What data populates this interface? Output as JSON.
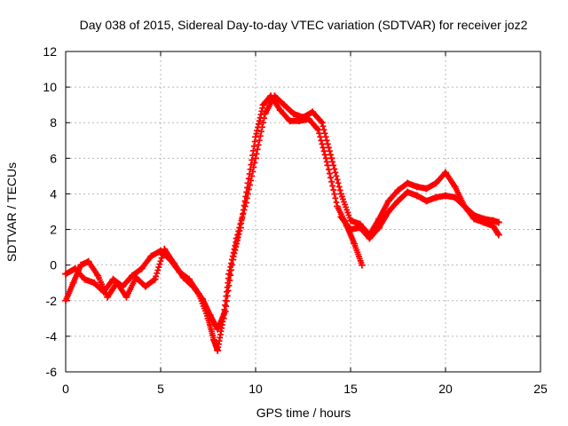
{
  "chart_data": {
    "type": "scatter",
    "title": "Day 038 of 2015, Sidereal Day-to-day VTEC variation (SDTVAR) for receiver joz2",
    "xlabel": "GPS time / hours",
    "ylabel": "SDTVAR / TECUs",
    "xlim": [
      0,
      25
    ],
    "ylim": [
      -6,
      12
    ],
    "xticks": [
      "0",
      "5",
      "10",
      "15",
      "20",
      "25"
    ],
    "yticks": [
      "-6",
      "-4",
      "-2",
      "0",
      "2",
      "4",
      "6",
      "8",
      "10",
      "12"
    ],
    "grid": true,
    "marker": "+",
    "series": [
      {
        "name": "main-trace-a",
        "x": [
          0.0,
          0.5,
          1.0,
          1.5,
          2.0,
          2.5,
          3.0,
          3.5,
          4.0,
          4.5,
          5.0,
          5.5,
          6.0,
          6.5,
          7.0,
          7.5,
          7.8,
          8.0,
          8.3,
          8.6,
          9.0,
          9.5,
          10.0,
          10.5,
          11.0,
          11.5,
          12.0,
          12.5,
          13.0,
          13.5,
          14.0,
          14.5,
          15.0,
          15.5,
          16.0,
          16.5,
          17.0,
          17.5,
          18.0,
          18.5,
          19.0,
          19.5,
          20.0,
          20.5,
          21.0,
          21.5,
          22.0,
          22.5,
          22.8
        ],
        "y": [
          -0.5,
          -0.2,
          -0.8,
          -1.0,
          -1.5,
          -0.8,
          -1.2,
          -0.6,
          -0.2,
          0.5,
          0.8,
          0.3,
          -0.4,
          -0.8,
          -1.6,
          -3.0,
          -4.2,
          -4.8,
          -3.0,
          -0.5,
          1.5,
          3.5,
          6.0,
          8.5,
          9.5,
          9.0,
          8.5,
          8.3,
          8.6,
          8.0,
          6.0,
          4.0,
          2.5,
          2.3,
          1.7,
          2.6,
          3.6,
          4.2,
          4.6,
          4.4,
          4.3,
          4.6,
          5.2,
          4.4,
          3.3,
          2.6,
          2.4,
          2.2,
          1.7
        ]
      },
      {
        "name": "main-trace-b",
        "x": [
          0.0,
          0.4,
          0.8,
          1.2,
          1.7,
          2.2,
          2.7,
          3.2,
          3.7,
          4.2,
          4.7,
          5.2,
          5.7,
          6.2,
          6.7,
          7.2,
          7.6,
          8.0,
          8.4,
          8.8,
          9.2,
          9.6,
          10.0,
          10.4,
          10.8,
          11.3,
          11.8,
          12.3,
          12.8,
          13.3,
          13.8,
          14.3,
          14.8,
          15.2,
          15.6
        ],
        "y": [
          -2.0,
          -1.0,
          0.0,
          0.2,
          -0.6,
          -1.8,
          -1.0,
          -1.8,
          -0.7,
          -1.2,
          -0.8,
          0.9,
          0.1,
          -0.7,
          -1.2,
          -1.9,
          -2.8,
          -3.6,
          -2.6,
          0.3,
          2.1,
          4.6,
          7.2,
          9.0,
          9.5,
          8.7,
          8.1,
          8.1,
          8.2,
          7.6,
          5.6,
          3.3,
          2.2,
          1.2,
          0.0
        ]
      },
      {
        "name": "main-trace-c",
        "x": [
          14.5,
          15.0,
          15.5,
          16.0,
          16.5,
          17.0,
          17.5,
          18.0,
          18.5,
          19.0,
          19.5,
          20.0,
          20.5,
          21.0,
          21.5,
          22.0,
          22.5,
          22.8
        ],
        "y": [
          2.7,
          2.0,
          2.1,
          1.5,
          2.1,
          3.0,
          3.6,
          4.1,
          3.9,
          3.6,
          3.8,
          3.9,
          3.8,
          3.3,
          2.8,
          2.6,
          2.5,
          2.4
        ]
      }
    ]
  }
}
